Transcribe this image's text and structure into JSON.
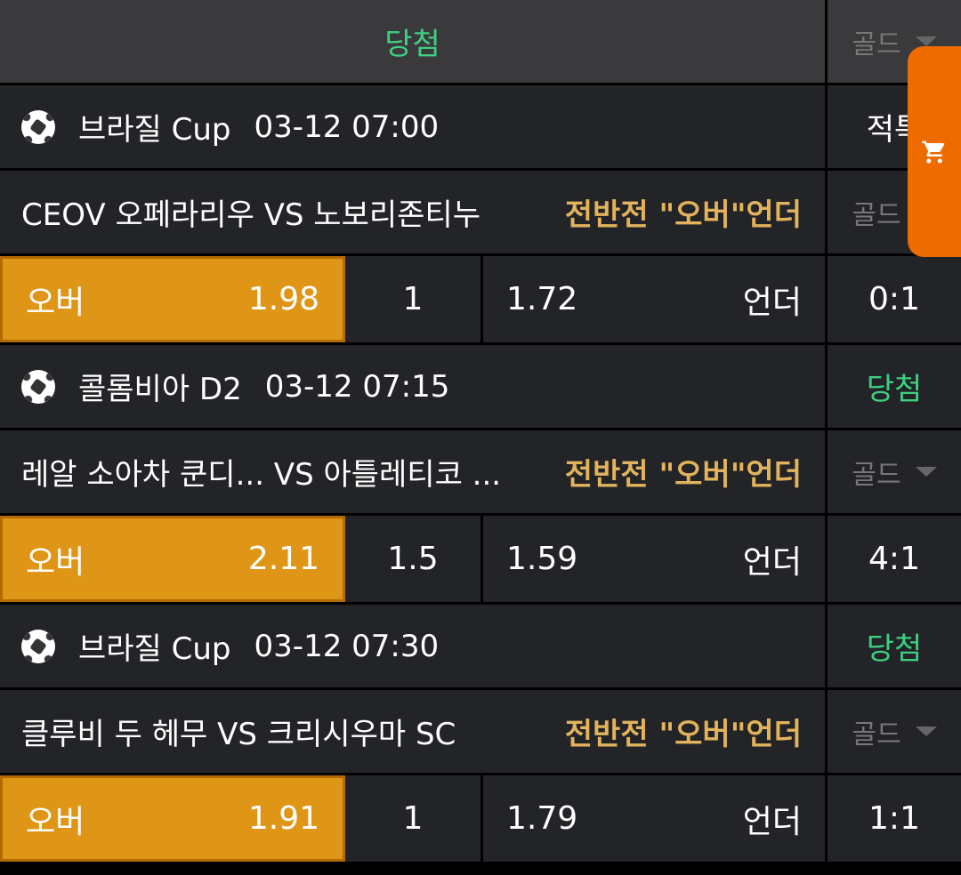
{
  "header": {
    "status": "당첨",
    "right_label": "골드"
  },
  "matches": [
    {
      "league": "브라질 Cup",
      "time": "03-12 07:00",
      "side": "적특",
      "teams": "CEOV 오페라리우 VS 노보리존티누",
      "market": "전반전 \"오버\"언더",
      "gold": "골드",
      "over_label": "오버",
      "over_odds": "1.98",
      "line": "1",
      "under_odds": "1.72",
      "under_label": "언더",
      "score": "0:1"
    },
    {
      "league": "콜롬비아 D2",
      "time": "03-12 07:15",
      "side": "당첨",
      "teams": "레알 소아차 쿤디...  VS 아틀레티코 ...",
      "market": "전반전 \"오버\"언더",
      "gold": "골드",
      "over_label": "오버",
      "over_odds": "2.11",
      "line": "1.5",
      "under_odds": "1.59",
      "under_label": "언더",
      "score": "4:1"
    },
    {
      "league": "브라질 Cup",
      "time": "03-12 07:30",
      "side": "당첨",
      "teams": "클루비 두 헤무 VS 크리시우마 SC",
      "market": "전반전 \"오버\"언더",
      "gold": "골드",
      "over_label": "오버",
      "over_odds": "1.91",
      "line": "1",
      "under_odds": "1.79",
      "under_label": "언더",
      "score": "1:1"
    }
  ],
  "colors": {
    "accent": "#df9616",
    "win": "#3ecf7f",
    "market": "#e2b35c",
    "cart": "#ee6b00"
  }
}
